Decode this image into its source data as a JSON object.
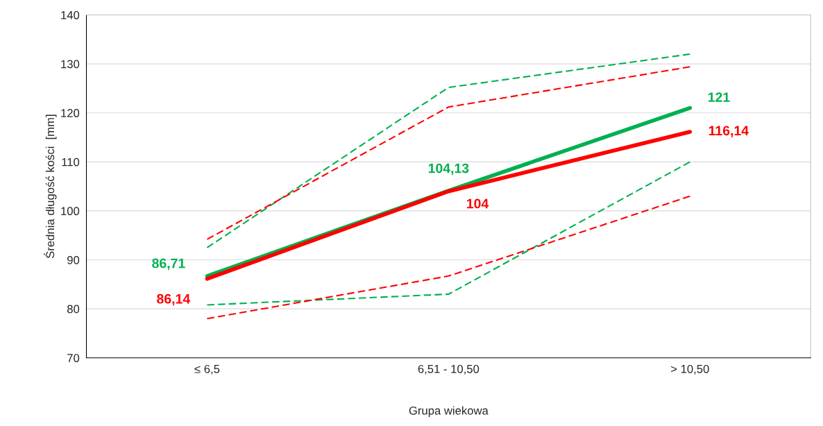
{
  "chart_data": {
    "type": "line",
    "xlabel": "Grupa wiekowa",
    "ylabel": "Średnia długość kości  [mm]",
    "categories": [
      "≤ 6,5",
      "6,51 - 10,50",
      "> 10,50"
    ],
    "series": [
      {
        "color": "#00b050",
        "values": [
          92.5,
          125.2,
          132
        ],
        "line_style": "dashed"
      },
      {
        "color": "#00b050",
        "values": [
          80.8,
          83,
          110
        ],
        "line_style": "dashed"
      },
      {
        "color": "#ff0000",
        "values": [
          94.2,
          121.2,
          129.4
        ],
        "line_style": "dashed"
      },
      {
        "color": "#ff0000",
        "values": [
          78,
          86.7,
          103
        ],
        "line_style": "dashed"
      },
      {
        "color": "#00b050",
        "values": [
          86.71,
          104.13,
          121
        ],
        "line_style": "solid",
        "value_labels": [
          "86,71",
          "104,13",
          "121"
        ]
      },
      {
        "color": "#ff0000",
        "values": [
          86.14,
          104,
          116.14
        ],
        "line_style": "solid",
        "value_labels": [
          "86,14",
          "104",
          "116,14"
        ]
      }
    ],
    "ylim": [
      70,
      140
    ],
    "yticks": [
      70,
      80,
      90,
      100,
      110,
      120,
      130,
      140
    ],
    "grid": "y",
    "marker": "none",
    "legend": false
  }
}
